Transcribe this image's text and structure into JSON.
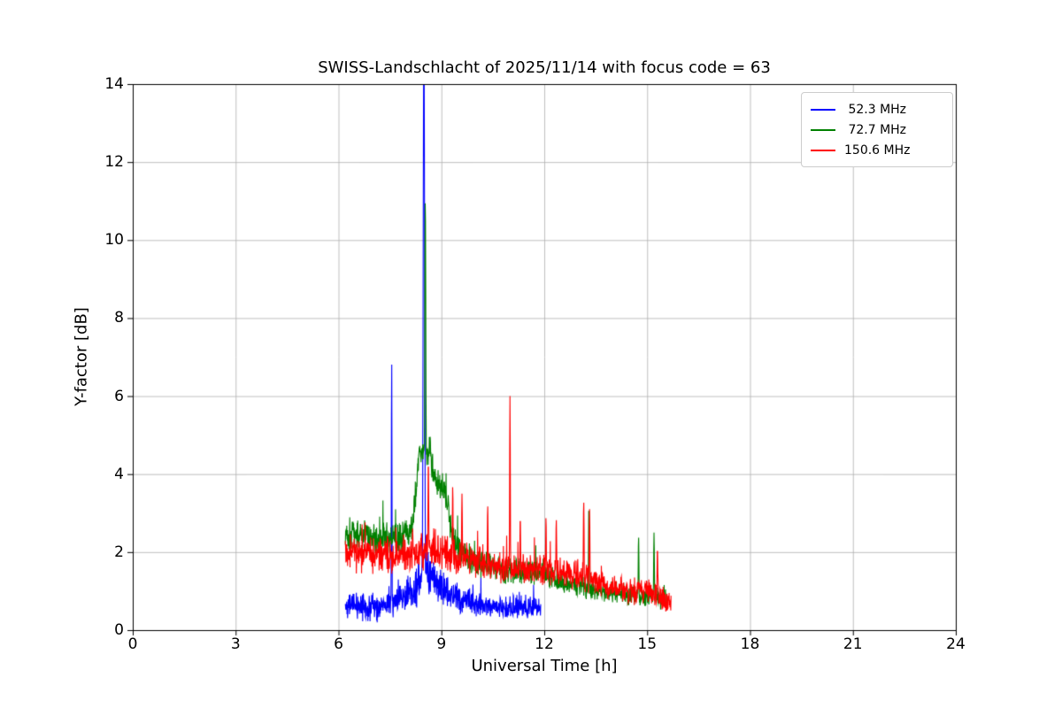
{
  "chart_data": {
    "type": "line",
    "title": "SWISS-Landschlacht of 2025/11/14 with focus code = 63",
    "xlabel": "Universal Time [h]",
    "ylabel": "Y-factor [dB]",
    "xlim": [
      0,
      24
    ],
    "ylim": [
      0,
      14
    ],
    "xticks": [
      0,
      3,
      6,
      9,
      12,
      15,
      18,
      21,
      24
    ],
    "yticks": [
      0,
      2,
      4,
      6,
      8,
      10,
      12,
      14
    ],
    "grid": true,
    "grid_color": "#b0b0b0",
    "background": "#ffffff",
    "legend_position": "upper right",
    "series": [
      {
        "name": " 52.3 MHz",
        "color": "#0000ff",
        "x_start": 6.2,
        "x_end": 11.9,
        "baseline": [
          [
            6.2,
            0.65,
            0.45
          ],
          [
            7.2,
            0.55,
            0.4
          ],
          [
            7.8,
            0.75,
            0.45
          ],
          [
            8.3,
            1.1,
            0.6
          ],
          [
            8.55,
            1.6,
            0.7
          ],
          [
            8.8,
            1.2,
            0.5
          ],
          [
            9.3,
            0.9,
            0.45
          ],
          [
            10.0,
            0.65,
            0.35
          ],
          [
            10.8,
            0.6,
            0.35
          ],
          [
            11.9,
            0.55,
            0.3
          ]
        ],
        "spikes": [
          {
            "x": 7.55,
            "peak": 7.0,
            "w": 0.012
          },
          {
            "x": 8.49,
            "peak": 15.5,
            "w": 0.03
          }
        ]
      },
      {
        "name": " 72.7 MHz",
        "color": "#008000",
        "x_start": 6.2,
        "x_end": 15.55,
        "baseline": [
          [
            6.2,
            2.5,
            0.5
          ],
          [
            7.0,
            2.4,
            0.5
          ],
          [
            7.6,
            2.3,
            0.5
          ],
          [
            8.15,
            2.5,
            0.5
          ],
          [
            8.35,
            4.5,
            0.5
          ],
          [
            8.65,
            4.6,
            0.6
          ],
          [
            8.85,
            3.8,
            0.4
          ],
          [
            9.1,
            3.6,
            0.4
          ],
          [
            9.35,
            2.3,
            0.5
          ],
          [
            9.8,
            1.8,
            0.45
          ],
          [
            10.5,
            1.6,
            0.4
          ],
          [
            11.5,
            1.5,
            0.4
          ],
          [
            12.5,
            1.3,
            0.35
          ],
          [
            13.5,
            1.0,
            0.3
          ],
          [
            14.5,
            0.9,
            0.3
          ],
          [
            15.55,
            0.8,
            0.3
          ]
        ],
        "spikes": [
          {
            "x": 8.53,
            "peak": 11.0,
            "w": 0.028
          },
          {
            "x": 13.3,
            "peak": 3.2,
            "w": 0.018
          },
          {
            "x": 14.75,
            "peak": 2.4,
            "w": 0.018
          },
          {
            "x": 15.2,
            "peak": 2.5,
            "w": 0.018
          }
        ]
      },
      {
        "name": "150.6 MHz",
        "color": "#ff0000",
        "x_start": 6.2,
        "x_end": 15.7,
        "baseline": [
          [
            6.2,
            2.0,
            0.55
          ],
          [
            7.0,
            1.95,
            0.55
          ],
          [
            8.0,
            1.9,
            0.5
          ],
          [
            8.6,
            2.1,
            0.6
          ],
          [
            9.0,
            2.0,
            0.55
          ],
          [
            9.6,
            1.9,
            0.5
          ],
          [
            10.2,
            1.7,
            0.5
          ],
          [
            11.0,
            1.6,
            0.45
          ],
          [
            12.0,
            1.5,
            0.45
          ],
          [
            13.0,
            1.4,
            0.45
          ],
          [
            13.6,
            1.2,
            0.4
          ],
          [
            14.3,
            1.0,
            0.4
          ],
          [
            15.0,
            1.0,
            0.4
          ],
          [
            15.7,
            0.7,
            0.35
          ]
        ],
        "spikes": [
          {
            "x": 8.62,
            "peak": 4.35,
            "w": 0.02
          },
          {
            "x": 9.33,
            "peak": 3.7,
            "w": 0.02
          },
          {
            "x": 9.6,
            "peak": 3.5,
            "w": 0.02
          },
          {
            "x": 10.35,
            "peak": 3.2,
            "w": 0.02
          },
          {
            "x": 11.0,
            "peak": 6.0,
            "w": 0.016
          },
          {
            "x": 11.3,
            "peak": 2.9,
            "w": 0.02
          },
          {
            "x": 12.05,
            "peak": 2.9,
            "w": 0.02
          },
          {
            "x": 12.35,
            "peak": 2.85,
            "w": 0.02
          },
          {
            "x": 13.15,
            "peak": 3.3,
            "w": 0.02
          },
          {
            "x": 13.32,
            "peak": 3.1,
            "w": 0.02
          },
          {
            "x": 15.3,
            "peak": 2.1,
            "w": 0.02
          }
        ]
      }
    ]
  }
}
